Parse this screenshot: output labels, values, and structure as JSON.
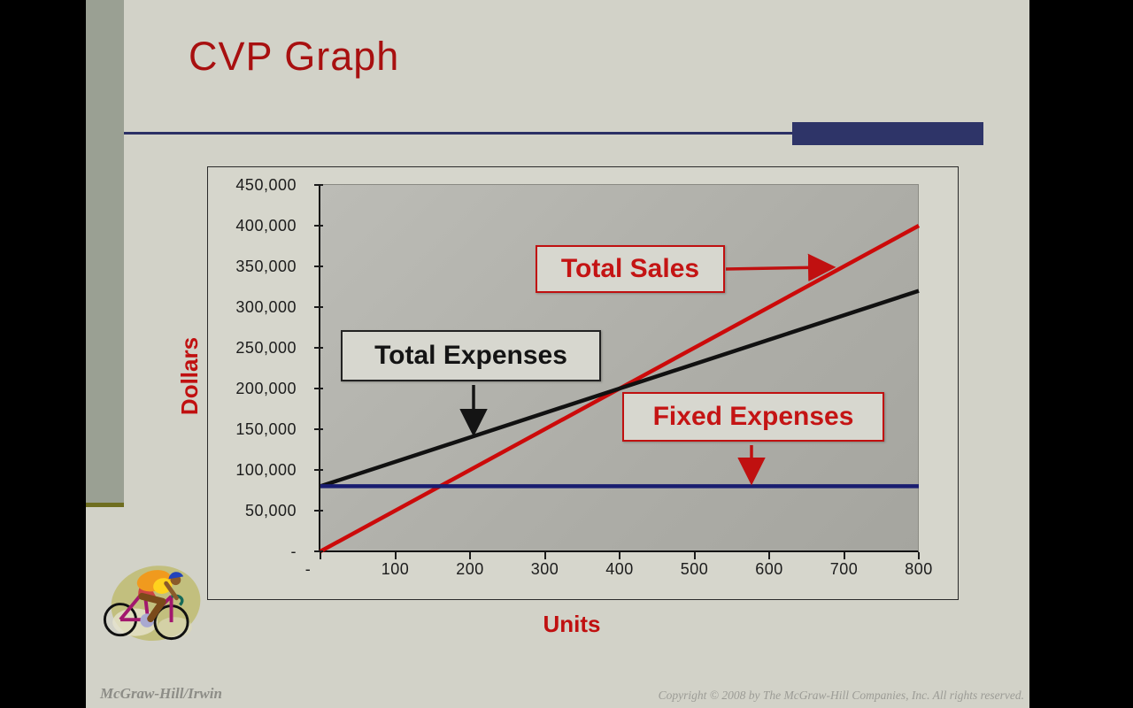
{
  "slide": {
    "title": "CVP Graph",
    "footer_left": "McGraw-Hill/Irwin",
    "footer_right": "Copyright © 2008 by The McGraw-Hill Companies, Inc. All rights reserved."
  },
  "colors": {
    "slide_background": "#d2d2c8",
    "left_column": "#9aa093",
    "left_column_cap": "#6f6e20",
    "accent_navy": "#2e3468",
    "title_red": "#a81010",
    "callout_red": "#c01010",
    "plot_gray": "#aeaea8",
    "chart_background": "#d6d6cc"
  },
  "chart_data": {
    "type": "line",
    "title": "",
    "xlabel": "Units",
    "ylabel": "Dollars",
    "xlim": [
      0,
      800
    ],
    "ylim": [
      0,
      450000
    ],
    "grid": false,
    "legend_position": "none",
    "x_ticks": [
      {
        "value": 0,
        "label": "-"
      },
      {
        "value": 100,
        "label": "100"
      },
      {
        "value": 200,
        "label": "200"
      },
      {
        "value": 300,
        "label": "300"
      },
      {
        "value": 400,
        "label": "400"
      },
      {
        "value": 500,
        "label": "500"
      },
      {
        "value": 600,
        "label": "600"
      },
      {
        "value": 700,
        "label": "700"
      },
      {
        "value": 800,
        "label": "800"
      }
    ],
    "y_ticks": [
      {
        "value": 0,
        "label": "-"
      },
      {
        "value": 50000,
        "label": "50,000"
      },
      {
        "value": 100000,
        "label": "100,000"
      },
      {
        "value": 150000,
        "label": "150,000"
      },
      {
        "value": 200000,
        "label": "200,000"
      },
      {
        "value": 250000,
        "label": "250,000"
      },
      {
        "value": 300000,
        "label": "300,000"
      },
      {
        "value": 350000,
        "label": "350,000"
      },
      {
        "value": 400000,
        "label": "400,000"
      },
      {
        "value": 450000,
        "label": "450,000"
      }
    ],
    "series": [
      {
        "name": "Total Sales",
        "color": "#cc0a0a",
        "points": [
          [
            0,
            0
          ],
          [
            800,
            400000
          ]
        ]
      },
      {
        "name": "Total Expenses",
        "color": "#111111",
        "points": [
          [
            0,
            80000
          ],
          [
            800,
            320000
          ]
        ]
      },
      {
        "name": "Fixed Expenses",
        "color": "#191d70",
        "points": [
          [
            0,
            80000
          ],
          [
            800,
            80000
          ]
        ]
      }
    ],
    "annotations": [
      {
        "label": "Total Sales",
        "style": "red",
        "arrow": "right"
      },
      {
        "label": "Total Expenses",
        "style": "black",
        "arrow": "down"
      },
      {
        "label": "Fixed Expenses",
        "style": "red",
        "arrow": "down"
      }
    ]
  }
}
